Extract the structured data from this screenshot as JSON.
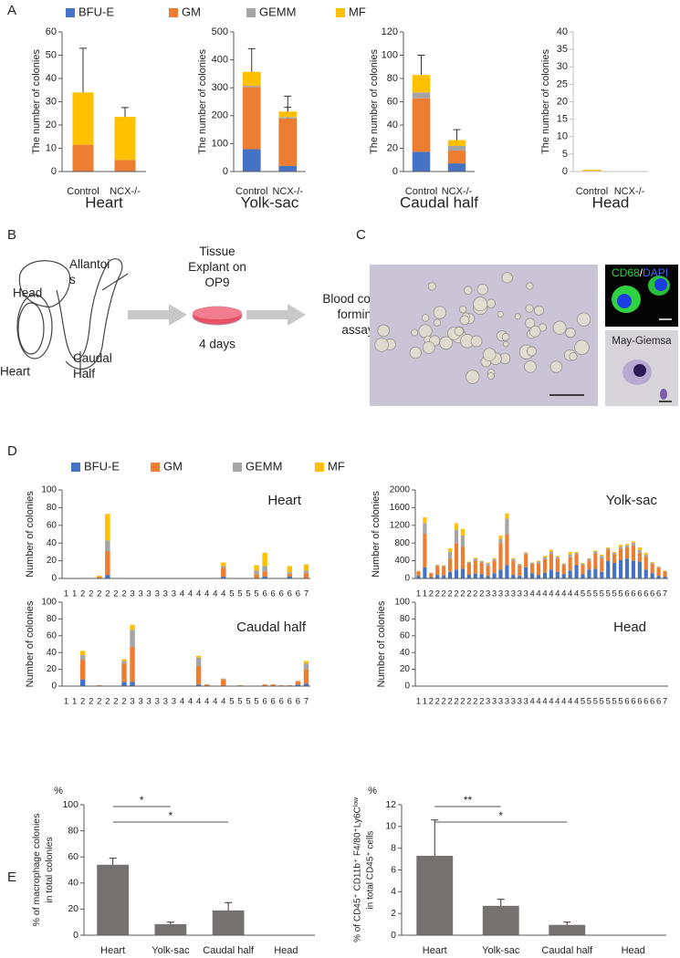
{
  "panel_labels": [
    "A",
    "B",
    "C",
    "D",
    "E"
  ],
  "diagram": {
    "head": "Head",
    "allantois": [
      "Allantoi",
      "s"
    ],
    "heart": "Heart",
    "caudal": [
      "Caudal",
      "Half"
    ],
    "explant": [
      "Tissue",
      "Explant on",
      "OP9"
    ],
    "duration": "4 days",
    "assay": [
      "Blood colony",
      "forming",
      "assay"
    ]
  },
  "micrographs": {
    "stain1": [
      "CD68",
      "/",
      "DAPI"
    ],
    "stain2": "May-Giemsa"
  },
  "chart_data": [
    {
      "type": "bar",
      "stacked": true,
      "title": "Heart",
      "ylabel": "The number of colonies",
      "categories": [
        "Control",
        "NCX-/-"
      ],
      "ylim": [
        0,
        60
      ],
      "yticks": [
        0,
        10,
        20,
        30,
        40,
        50,
        60
      ],
      "legend": "top",
      "series": [
        {
          "name": "BFU-E",
          "color": "#4472c4",
          "values": [
            0,
            0
          ]
        },
        {
          "name": "GM",
          "color": "#ed7d31",
          "values": [
            11.5,
            5
          ],
          "errors": [
            11,
            2.5
          ]
        },
        {
          "name": "GEMM",
          "color": "#a5a5a5",
          "values": [
            0,
            0
          ]
        },
        {
          "name": "MF",
          "color": "#ffc000",
          "values": [
            22.5,
            18.5
          ],
          "errors": [
            19,
            4
          ]
        }
      ]
    },
    {
      "type": "bar",
      "stacked": true,
      "title": "Yolk-sac",
      "ylabel": "The number of colonies",
      "categories": [
        "Control",
        "NCX-/-"
      ],
      "ylim": [
        0,
        500
      ],
      "yticks": [
        0,
        100,
        200,
        300,
        400,
        500
      ],
      "series": [
        {
          "color": "#4472c4",
          "values": [
            80,
            20
          ],
          "errors": [
            50,
            8
          ]
        },
        {
          "color": "#ed7d31",
          "values": [
            222,
            170
          ],
          "errors": [
            null,
            40
          ]
        },
        {
          "color": "#a5a5a5",
          "values": [
            5,
            5
          ]
        },
        {
          "color": "#ffc000",
          "values": [
            50,
            20
          ],
          "errors": [
            83,
            55
          ]
        }
      ]
    },
    {
      "type": "bar",
      "stacked": true,
      "title": "Caudal half",
      "ylabel": "The number of colonies",
      "categories": [
        "Control",
        "NCX-/-"
      ],
      "ylim": [
        0,
        120
      ],
      "yticks": [
        0,
        20,
        40,
        60,
        80,
        100,
        120
      ],
      "series": [
        {
          "color": "#4472c4",
          "values": [
            17,
            7
          ],
          "errors": [
            12,
            7
          ]
        },
        {
          "color": "#ed7d31",
          "values": [
            46,
            11
          ],
          "errors": [
            null,
            5
          ]
        },
        {
          "color": "#a5a5a5",
          "values": [
            5,
            4
          ]
        },
        {
          "color": "#ffc000",
          "values": [
            15,
            5
          ],
          "errors": [
            17,
            9
          ]
        }
      ]
    },
    {
      "type": "bar",
      "stacked": true,
      "title": "Head",
      "ylabel": "The number of colonies",
      "categories": [
        "Control",
        "NCX-/-"
      ],
      "ylim": [
        0,
        40
      ],
      "yticks": [
        0,
        5,
        10,
        15,
        20,
        25,
        30,
        35,
        40
      ],
      "axis_color": "#bfbfbf",
      "series": [
        {
          "color": "#4472c4",
          "values": [
            0,
            0
          ]
        },
        {
          "color": "#ed7d31",
          "values": [
            0.2,
            0
          ]
        },
        {
          "color": "#a5a5a5",
          "values": [
            0,
            0
          ]
        },
        {
          "color": "#ffc000",
          "values": [
            0.3,
            0
          ]
        }
      ]
    },
    {
      "type": "bar",
      "stacked": true,
      "title": "Heart",
      "ylabel": "Number of colonies",
      "legend": "top",
      "categories": [
        "1",
        "1",
        "2",
        "2",
        "2",
        "2",
        "2",
        "2",
        "3",
        "3",
        "3",
        "3",
        "3",
        "3",
        "4",
        "4",
        "4",
        "4",
        "4",
        "4",
        "5",
        "5",
        "5",
        "5",
        "6",
        "6",
        "6",
        "6",
        "6",
        "7"
      ],
      "ylim": [
        0,
        100
      ],
      "yticks": [
        0,
        20,
        40,
        60,
        80,
        100
      ],
      "series": [
        {
          "name": "BFU-E",
          "color": "#4472c4",
          "values": [
            0,
            0,
            0,
            0,
            0,
            4,
            0,
            0,
            0,
            0,
            0,
            0,
            0,
            0,
            0,
            0,
            0,
            0,
            0,
            2,
            0,
            0,
            0,
            0,
            2,
            0,
            0,
            2,
            0,
            0
          ]
        },
        {
          "name": "GM",
          "color": "#ed7d31",
          "values": [
            0,
            0,
            0,
            0,
            2,
            27,
            0,
            0,
            0,
            0,
            0,
            0,
            0,
            0,
            0,
            0,
            0,
            0,
            0,
            10,
            0,
            0,
            0,
            5,
            6,
            0,
            0,
            3,
            0,
            6
          ]
        },
        {
          "name": "GEMM",
          "color": "#a5a5a5",
          "values": [
            0,
            0,
            0,
            0,
            0,
            12,
            0,
            0,
            0,
            0,
            0,
            0,
            0,
            0,
            0,
            0,
            0,
            0,
            0,
            2,
            0,
            0,
            0,
            4,
            6,
            0,
            0,
            2,
            0,
            3
          ]
        },
        {
          "name": "MF",
          "color": "#ffc000",
          "values": [
            0,
            0,
            0,
            0,
            1,
            30,
            0,
            0,
            0,
            0,
            0,
            0,
            0,
            0,
            0,
            0,
            0,
            0,
            0,
            4,
            0,
            0,
            0,
            6,
            15,
            0,
            0,
            7,
            0,
            7
          ]
        }
      ]
    },
    {
      "type": "bar",
      "stacked": true,
      "title": "Yolk-sac",
      "ylabel": "Number of colonies",
      "categories": [
        "1",
        "1",
        "2",
        "2",
        "2",
        "2",
        "2",
        "2",
        "2",
        "2",
        "2",
        "3",
        "3",
        "3",
        "3",
        "3",
        "3",
        "3",
        "4",
        "4",
        "4",
        "4",
        "4",
        "4",
        "4",
        "4",
        "5",
        "5",
        "5",
        "5",
        "5",
        "5",
        "5",
        "6",
        "6",
        "6",
        "6",
        "6",
        "6",
        "7"
      ],
      "ylim": [
        0,
        2000
      ],
      "yticks": [
        0,
        400,
        800,
        1200,
        1600,
        2000
      ],
      "series": [
        {
          "color": "#4472c4",
          "values": [
            60,
            250,
            30,
            80,
            70,
            150,
            200,
            220,
            90,
            110,
            100,
            60,
            120,
            200,
            300,
            80,
            60,
            250,
            120,
            80,
            130,
            200,
            150,
            100,
            180,
            300,
            100,
            200,
            220,
            150,
            400,
            350,
            420,
            450,
            400,
            380,
            200,
            120,
            60,
            40
          ]
        },
        {
          "color": "#ed7d31",
          "values": [
            100,
            750,
            90,
            200,
            200,
            300,
            600,
            500,
            250,
            300,
            250,
            220,
            280,
            600,
            700,
            320,
            230,
            300,
            200,
            250,
            300,
            350,
            300,
            200,
            300,
            250,
            200,
            200,
            350,
            300,
            250,
            200,
            250,
            250,
            350,
            200,
            300,
            200,
            180,
            120
          ]
        },
        {
          "color": "#a5a5a5",
          "values": [
            10,
            250,
            5,
            20,
            20,
            150,
            300,
            250,
            30,
            40,
            40,
            60,
            40,
            100,
            350,
            40,
            30,
            30,
            30,
            50,
            50,
            60,
            40,
            30,
            60,
            30,
            30,
            50,
            40,
            60,
            30,
            30,
            50,
            50,
            60,
            60,
            40,
            30,
            20,
            10
          ]
        },
        {
          "color": "#ffc000",
          "values": [
            5,
            130,
            5,
            10,
            10,
            80,
            150,
            150,
            10,
            20,
            10,
            20,
            20,
            70,
            120,
            20,
            10,
            10,
            10,
            20,
            30,
            40,
            20,
            10,
            60,
            20,
            20,
            10,
            20,
            30,
            20,
            20,
            40,
            30,
            30,
            60,
            40,
            20,
            10,
            10
          ]
        }
      ]
    },
    {
      "type": "bar",
      "stacked": true,
      "title": "Caudal half",
      "ylabel": "Number of colonies",
      "categories": [
        "1",
        "1",
        "2",
        "2",
        "2",
        "2",
        "2",
        "2",
        "3",
        "3",
        "3",
        "3",
        "3",
        "3",
        "4",
        "4",
        "4",
        "4",
        "4",
        "4",
        "5",
        "5",
        "5",
        "5",
        "6",
        "6",
        "6",
        "6",
        "6",
        "7"
      ],
      "ylim": [
        0,
        100
      ],
      "yticks": [
        0,
        20,
        40,
        60,
        80,
        100
      ],
      "series": [
        {
          "color": "#4472c4",
          "values": [
            0,
            0,
            8,
            0,
            0,
            0,
            0,
            5,
            5,
            0,
            0,
            0,
            0,
            0,
            0,
            0,
            2,
            0,
            0,
            0,
            0,
            0,
            0,
            0,
            0,
            0,
            0,
            0,
            2,
            3
          ]
        },
        {
          "color": "#ed7d31",
          "values": [
            0,
            0,
            23,
            0,
            1,
            0,
            0,
            22,
            42,
            0,
            0,
            0,
            0,
            0,
            0,
            0,
            22,
            2,
            0,
            8,
            0,
            1,
            0,
            0,
            2,
            2,
            1,
            1,
            4,
            17
          ]
        },
        {
          "color": "#a5a5a5",
          "values": [
            0,
            0,
            6,
            0,
            0,
            0,
            0,
            3,
            20,
            0,
            0,
            0,
            0,
            0,
            0,
            0,
            10,
            0,
            0,
            1,
            0,
            0,
            0,
            0,
            0,
            0,
            0,
            0,
            0,
            7
          ]
        },
        {
          "color": "#ffc000",
          "values": [
            0,
            0,
            5,
            0,
            0,
            0,
            0,
            2,
            6,
            0,
            0,
            0,
            0,
            0,
            0,
            0,
            2,
            0,
            0,
            0,
            0,
            0,
            0,
            0,
            0,
            0,
            0,
            0,
            0,
            3
          ]
        }
      ]
    },
    {
      "type": "bar",
      "stacked": true,
      "title": "Head",
      "ylabel": "Number of colonies",
      "categories": [
        "1",
        "1",
        "2",
        "2",
        "2",
        "2",
        "2",
        "2",
        "2",
        "2",
        "2",
        "3",
        "3",
        "3",
        "3",
        "3",
        "3",
        "3",
        "4",
        "4",
        "4",
        "4",
        "4",
        "4",
        "4",
        "4",
        "5",
        "5",
        "5",
        "5",
        "5",
        "5",
        "5",
        "6",
        "6",
        "6",
        "6",
        "6",
        "6",
        "7"
      ],
      "ylim": [
        0,
        100
      ],
      "yticks": [
        0,
        20,
        40,
        60,
        80,
        100
      ],
      "series": [
        {
          "color": "#4472c4",
          "values": [
            0,
            0,
            0,
            0,
            0,
            0,
            0,
            0,
            0,
            0,
            0,
            0,
            0,
            0,
            0,
            0,
            0,
            0,
            0,
            0,
            0,
            0,
            0,
            0,
            0,
            0,
            0,
            0,
            0,
            0,
            0,
            0,
            0,
            0,
            0,
            0,
            0,
            0,
            0,
            0
          ]
        },
        {
          "color": "#ed7d31",
          "values": [
            0,
            0,
            0,
            0,
            0,
            0,
            0,
            0,
            0,
            0,
            0,
            0,
            0,
            0,
            0,
            0,
            0,
            0,
            0,
            0,
            0,
            0,
            0,
            0,
            0,
            0,
            0,
            0,
            0,
            0,
            0,
            0,
            0,
            0,
            0,
            0,
            0,
            0,
            0,
            0
          ]
        },
        {
          "color": "#a5a5a5",
          "values": [
            0,
            0,
            0,
            0,
            0,
            0,
            0,
            0,
            0,
            0,
            0,
            0,
            0,
            0,
            0,
            0,
            0,
            0,
            0,
            0,
            0,
            0,
            0,
            0,
            0,
            0,
            0,
            0,
            0,
            0,
            0,
            0,
            0,
            0,
            0,
            0,
            0,
            0,
            0,
            0
          ]
        },
        {
          "color": "#ffc000",
          "values": [
            0,
            0,
            0,
            0,
            0,
            0,
            0,
            0,
            0,
            0,
            0,
            0,
            0,
            0,
            0,
            0,
            0,
            0,
            0,
            0,
            0,
            0,
            0,
            0,
            0,
            0,
            0,
            0,
            0,
            0,
            0,
            0,
            0,
            0,
            0,
            0,
            0,
            0,
            0,
            0
          ]
        }
      ]
    },
    {
      "type": "bar",
      "unit": "%",
      "ylabel": [
        "% of macrophage colonies",
        "in total colonies"
      ],
      "categories": [
        "Heart",
        "Yolk-sac",
        "Caudal half",
        "Head"
      ],
      "ylim": [
        0,
        100
      ],
      "yticks": [
        0,
        20,
        40,
        60,
        80,
        100
      ],
      "series": [
        {
          "color": "#767171",
          "values": [
            54,
            8.5,
            19,
            0
          ],
          "errors": [
            5,
            1.5,
            6,
            null
          ]
        }
      ],
      "significance": [
        {
          "label": "*",
          "between": [
            "Heart",
            "Yolk-sac"
          ]
        },
        {
          "label": "*",
          "between": [
            "Heart",
            "Caudal half"
          ]
        }
      ]
    },
    {
      "type": "bar",
      "unit": "%",
      "ylabel": [
        "% of CD45⁺ CD11b⁺ F4/80⁺Ly6Cˡᵒʷ",
        "in total CD45⁺ cells"
      ],
      "categories": [
        "Heart",
        "Yolk-sac",
        "Caudal half",
        "Head"
      ],
      "ylim": [
        0,
        12
      ],
      "yticks": [
        0,
        2,
        4,
        6,
        8,
        10,
        12
      ],
      "series": [
        {
          "color": "#767171",
          "values": [
            7.3,
            2.7,
            0.95,
            0
          ],
          "errors": [
            3.3,
            0.6,
            0.25,
            null
          ]
        }
      ],
      "significance": [
        {
          "label": "**",
          "between": [
            "Heart",
            "Yolk-sac"
          ]
        },
        {
          "label": "*",
          "between": [
            "Heart",
            "Caudal half"
          ]
        }
      ]
    }
  ]
}
